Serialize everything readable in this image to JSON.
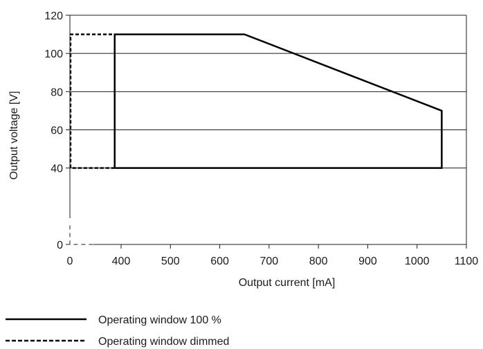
{
  "chart_data": {
    "type": "line",
    "title": "",
    "xlabel": "Output current [mA]",
    "ylabel": "Output voltage [V]",
    "x_ticks": [
      {
        "value": 0,
        "label": "0"
      },
      {
        "value": 400,
        "label": "400"
      },
      {
        "value": 500,
        "label": "500"
      },
      {
        "value": 600,
        "label": "600"
      },
      {
        "value": 700,
        "label": "700"
      },
      {
        "value": 800,
        "label": "800"
      },
      {
        "value": 900,
        "label": "900"
      },
      {
        "value": 1000,
        "label": "1000"
      },
      {
        "value": 1100,
        "label": "1100"
      }
    ],
    "y_ticks": [
      {
        "value": 0,
        "label": "0"
      },
      {
        "value": 40,
        "label": "40"
      },
      {
        "value": 60,
        "label": "60"
      },
      {
        "value": 80,
        "label": "80"
      },
      {
        "value": 100,
        "label": "100"
      },
      {
        "value": 120,
        "label": "120"
      }
    ],
    "ylim": [
      0,
      120
    ],
    "grid": "horizontal",
    "legend_position": "bottom-left",
    "axis_break": "x-axis between 0 and 400 mA (compressed scale)",
    "series": [
      {
        "name": "Operating window 100 %",
        "style": "solid",
        "color": "#000000",
        "points": [
          [
            350,
            40
          ],
          [
            350,
            110
          ],
          [
            650,
            110
          ],
          [
            1050,
            70
          ],
          [
            1050,
            40
          ],
          [
            350,
            40
          ]
        ]
      },
      {
        "name": "Operating window dimmed",
        "style": "dashed",
        "color": "#000000",
        "points": [
          [
            350,
            40
          ],
          [
            5,
            40
          ],
          [
            5,
            110
          ],
          [
            350,
            110
          ]
        ]
      }
    ],
    "break_marks": [
      {
        "style": "dashed",
        "points": [
          [
            0,
            10
          ],
          [
            0,
            0
          ],
          [
            350,
            0
          ]
        ]
      }
    ]
  }
}
